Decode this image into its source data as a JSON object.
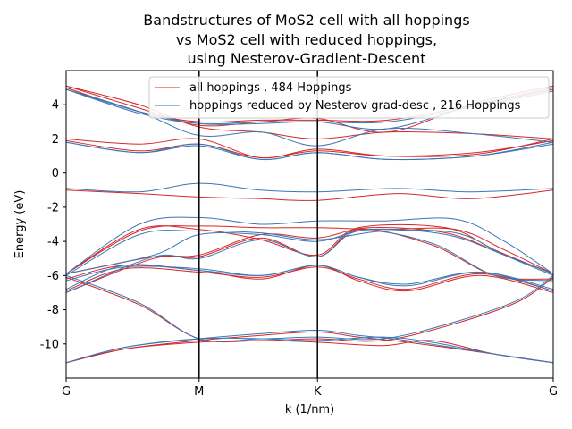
{
  "chart_data": {
    "type": "line",
    "title_lines": [
      "Bandstructures of MoS2 cell with all hoppings",
      "vs MoS2 cell with reduced hoppings,",
      "using Nesterov-Gradient-Descent"
    ],
    "xlabel": "k (1/nm)",
    "ylabel": "Energy (eV)",
    "ylim": [
      -12.0,
      6.0
    ],
    "yticks": [
      -10,
      -8,
      -6,
      -4,
      -2,
      0,
      2,
      4
    ],
    "x_ticks": [
      {
        "label": "G",
        "pos": 0.0
      },
      {
        "label": "M",
        "pos": 0.273
      },
      {
        "label": "K",
        "pos": 0.516
      },
      {
        "label": "G",
        "pos": 1.0
      }
    ],
    "vlines_at": [
      0.273,
      0.516
    ],
    "legend": {
      "placement": "top-right"
    },
    "series": [
      {
        "name": "all hoppings , 484 Hoppings",
        "color": "#d62728",
        "bands": [
          [
            [
              0,
              -11.1
            ],
            [
              0.12,
              -10.3
            ],
            [
              0.273,
              -9.9
            ],
            [
              0.4,
              -9.8
            ],
            [
              0.516,
              -9.9
            ],
            [
              0.65,
              -10.1
            ],
            [
              0.75,
              -9.8
            ],
            [
              0.88,
              -10.6
            ],
            [
              1,
              -11.1
            ]
          ],
          [
            [
              0,
              -11.1
            ],
            [
              0.12,
              -10.3
            ],
            [
              0.273,
              -9.8
            ],
            [
              0.4,
              -9.5
            ],
            [
              0.516,
              -9.3
            ],
            [
              0.6,
              -9.6
            ],
            [
              0.7,
              -9.9
            ],
            [
              0.88,
              -10.6
            ],
            [
              1,
              -11.1
            ]
          ],
          [
            [
              0,
              -6.1
            ],
            [
              0.15,
              -7.7
            ],
            [
              0.273,
              -9.7
            ],
            [
              0.4,
              -9.8
            ],
            [
              0.516,
              -9.7
            ],
            [
              0.65,
              -9.8
            ],
            [
              0.8,
              -8.8
            ],
            [
              0.93,
              -7.5
            ],
            [
              1,
              -6.1
            ]
          ],
          [
            [
              0,
              -6.2
            ],
            [
              0.12,
              -5.4
            ],
            [
              0.273,
              -5.7
            ],
            [
              0.4,
              -6.2
            ],
            [
              0.516,
              -5.4
            ],
            [
              0.6,
              -6.3
            ],
            [
              0.7,
              -6.9
            ],
            [
              0.85,
              -6.0
            ],
            [
              1,
              -7.0
            ]
          ],
          [
            [
              0,
              -6.9
            ],
            [
              0.12,
              -5.6
            ],
            [
              0.273,
              -5.8
            ],
            [
              0.4,
              -6.1
            ],
            [
              0.516,
              -5.5
            ],
            [
              0.6,
              -6.2
            ],
            [
              0.7,
              -6.8
            ],
            [
              0.85,
              -5.9
            ],
            [
              1,
              -6.9
            ]
          ],
          [
            [
              0,
              -7.0
            ],
            [
              0.18,
              -5.0
            ],
            [
              0.273,
              -4.9
            ],
            [
              0.4,
              -3.8
            ],
            [
              0.516,
              -4.9
            ],
            [
              0.6,
              -3.3
            ],
            [
              0.75,
              -4.2
            ],
            [
              0.88,
              -6.0
            ],
            [
              1,
              -6.2
            ]
          ],
          [
            [
              0,
              -5.9
            ],
            [
              0.15,
              -3.3
            ],
            [
              0.273,
              -3.3
            ],
            [
              0.4,
              -3.9
            ],
            [
              0.516,
              -4.8
            ],
            [
              0.6,
              -3.2
            ],
            [
              0.78,
              -3.2
            ],
            [
              0.88,
              -4.5
            ],
            [
              1,
              -5.9
            ]
          ],
          [
            [
              0,
              -5.9
            ],
            [
              0.18,
              -4.9
            ],
            [
              0.273,
              -4.8
            ],
            [
              0.4,
              -3.6
            ],
            [
              0.516,
              -3.8
            ],
            [
              0.62,
              -3.2
            ],
            [
              0.78,
              -3.5
            ],
            [
              0.9,
              -4.8
            ],
            [
              1,
              -5.9
            ]
          ],
          [
            [
              0,
              -5.9
            ],
            [
              0.15,
              -3.4
            ],
            [
              0.273,
              -3.1
            ],
            [
              0.4,
              -3.2
            ],
            [
              0.516,
              -3.2
            ],
            [
              0.65,
              -3.3
            ],
            [
              0.8,
              -3.3
            ],
            [
              0.9,
              -4.5
            ],
            [
              1,
              -5.9
            ]
          ],
          [
            [
              0,
              -1.0
            ],
            [
              0.15,
              -1.2
            ],
            [
              0.273,
              -1.4
            ],
            [
              0.4,
              -1.5
            ],
            [
              0.516,
              -1.6
            ],
            [
              0.68,
              -1.2
            ],
            [
              0.83,
              -1.5
            ],
            [
              1,
              -1.0
            ]
          ],
          [
            [
              0,
              1.9
            ],
            [
              0.15,
              1.3
            ],
            [
              0.273,
              1.7
            ],
            [
              0.4,
              0.9
            ],
            [
              0.516,
              1.3
            ],
            [
              0.66,
              1.0
            ],
            [
              0.84,
              1.2
            ],
            [
              1,
              1.9
            ]
          ],
          [
            [
              0,
              2.0
            ],
            [
              0.15,
              1.7
            ],
            [
              0.273,
              2.0
            ],
            [
              0.4,
              0.9
            ],
            [
              0.516,
              1.4
            ],
            [
              0.66,
              1.0
            ],
            [
              0.84,
              1.1
            ],
            [
              1,
              2.0
            ]
          ],
          [
            [
              0,
              5.1
            ],
            [
              0.15,
              4.0
            ],
            [
              0.273,
              2.7
            ],
            [
              0.4,
              2.4
            ],
            [
              0.516,
              2.0
            ],
            [
              0.66,
              2.4
            ],
            [
              0.84,
              2.3
            ],
            [
              1,
              2.0
            ]
          ],
          [
            [
              0,
              5.1
            ],
            [
              0.15,
              3.8
            ],
            [
              0.273,
              2.8
            ],
            [
              0.4,
              3.0
            ],
            [
              0.516,
              3.2
            ],
            [
              0.66,
              2.4
            ],
            [
              0.84,
              4.1
            ],
            [
              1,
              5.1
            ]
          ],
          [
            [
              0,
              5.0
            ],
            [
              0.15,
              3.6
            ],
            [
              0.273,
              3.0
            ],
            [
              0.4,
              3.1
            ],
            [
              0.516,
              3.1
            ],
            [
              0.66,
              3.1
            ],
            [
              0.84,
              4.0
            ],
            [
              1,
              4.9
            ]
          ]
        ]
      },
      {
        "name": "hoppings reduced by Nesterov grad-desc , 216 Hoppings",
        "color": "#3a77b4",
        "bands": [
          [
            [
              0,
              -11.1
            ],
            [
              0.12,
              -10.2
            ],
            [
              0.273,
              -9.7
            ],
            [
              0.4,
              -9.7
            ],
            [
              0.516,
              -9.8
            ],
            [
              0.65,
              -9.6
            ],
            [
              0.75,
              -9.9
            ],
            [
              0.88,
              -10.6
            ],
            [
              1,
              -11.1
            ]
          ],
          [
            [
              0,
              -11.1
            ],
            [
              0.12,
              -10.2
            ],
            [
              0.273,
              -9.7
            ],
            [
              0.4,
              -9.4
            ],
            [
              0.516,
              -9.2
            ],
            [
              0.6,
              -9.5
            ],
            [
              0.7,
              -9.8
            ],
            [
              0.88,
              -10.6
            ],
            [
              1,
              -11.1
            ]
          ],
          [
            [
              0,
              -6.0
            ],
            [
              0.15,
              -7.6
            ],
            [
              0.273,
              -9.7
            ],
            [
              0.4,
              -9.7
            ],
            [
              0.516,
              -9.6
            ],
            [
              0.65,
              -9.7
            ],
            [
              0.8,
              -8.7
            ],
            [
              0.93,
              -7.4
            ],
            [
              1,
              -6.0
            ]
          ],
          [
            [
              0,
              -6.3
            ],
            [
              0.12,
              -5.5
            ],
            [
              0.273,
              -5.6
            ],
            [
              0.4,
              -6.0
            ],
            [
              0.516,
              -5.4
            ],
            [
              0.6,
              -6.1
            ],
            [
              0.7,
              -6.5
            ],
            [
              0.85,
              -5.8
            ],
            [
              1,
              -6.9
            ]
          ],
          [
            [
              0,
              -6.8
            ],
            [
              0.12,
              -5.4
            ],
            [
              0.273,
              -5.7
            ],
            [
              0.4,
              -6.0
            ],
            [
              0.516,
              -5.4
            ],
            [
              0.6,
              -6.1
            ],
            [
              0.7,
              -6.6
            ],
            [
              0.85,
              -5.8
            ],
            [
              1,
              -6.8
            ]
          ],
          [
            [
              0,
              -7.0
            ],
            [
              0.18,
              -4.9
            ],
            [
              0.273,
              -5.0
            ],
            [
              0.4,
              -3.9
            ],
            [
              0.516,
              -4.9
            ],
            [
              0.6,
              -3.4
            ],
            [
              0.75,
              -4.1
            ],
            [
              0.88,
              -6.0
            ],
            [
              1,
              -6.3
            ]
          ],
          [
            [
              0,
              -5.9
            ],
            [
              0.15,
              -3.0
            ],
            [
              0.273,
              -2.6
            ],
            [
              0.4,
              -3.0
            ],
            [
              0.516,
              -2.8
            ],
            [
              0.65,
              -2.8
            ],
            [
              0.8,
              -2.7
            ],
            [
              0.9,
              -4.0
            ],
            [
              1,
              -5.9
            ]
          ],
          [
            [
              0,
              -5.9
            ],
            [
              0.18,
              -4.8
            ],
            [
              0.273,
              -3.6
            ],
            [
              0.4,
              -3.6
            ],
            [
              0.516,
              -4.0
            ],
            [
              0.62,
              -3.3
            ],
            [
              0.78,
              -3.6
            ],
            [
              0.9,
              -4.8
            ],
            [
              1,
              -5.9
            ]
          ],
          [
            [
              0,
              -6.0
            ],
            [
              0.15,
              -3.6
            ],
            [
              0.273,
              -3.4
            ],
            [
              0.4,
              -3.5
            ],
            [
              0.516,
              -3.9
            ],
            [
              0.65,
              -3.4
            ],
            [
              0.8,
              -3.5
            ],
            [
              0.9,
              -4.8
            ],
            [
              1,
              -6.0
            ]
          ],
          [
            [
              0,
              -0.9
            ],
            [
              0.15,
              -1.1
            ],
            [
              0.273,
              -0.6
            ],
            [
              0.4,
              -1.0
            ],
            [
              0.516,
              -1.1
            ],
            [
              0.68,
              -0.9
            ],
            [
              0.83,
              -1.1
            ],
            [
              1,
              -0.9
            ]
          ],
          [
            [
              0,
              1.8
            ],
            [
              0.15,
              1.2
            ],
            [
              0.273,
              1.6
            ],
            [
              0.4,
              0.8
            ],
            [
              0.516,
              1.2
            ],
            [
              0.66,
              0.8
            ],
            [
              0.84,
              1.0
            ],
            [
              1,
              1.8
            ]
          ],
          [
            [
              0,
              1.8
            ],
            [
              0.15,
              1.2
            ],
            [
              0.273,
              1.7
            ],
            [
              0.4,
              0.8
            ],
            [
              0.516,
              1.2
            ],
            [
              0.66,
              0.8
            ],
            [
              0.84,
              1.0
            ],
            [
              1,
              1.7
            ]
          ],
          [
            [
              0,
              4.9
            ],
            [
              0.15,
              3.6
            ],
            [
              0.273,
              2.2
            ],
            [
              0.4,
              2.4
            ],
            [
              0.516,
              1.6
            ],
            [
              0.66,
              2.6
            ],
            [
              0.84,
              2.3
            ],
            [
              1,
              1.8
            ]
          ],
          [
            [
              0,
              4.9
            ],
            [
              0.15,
              3.6
            ],
            [
              0.273,
              2.9
            ],
            [
              0.4,
              2.9
            ],
            [
              0.516,
              3.0
            ],
            [
              0.66,
              2.6
            ],
            [
              0.84,
              4.0
            ],
            [
              1,
              5.0
            ]
          ],
          [
            [
              0,
              4.9
            ],
            [
              0.15,
              3.5
            ],
            [
              0.273,
              2.9
            ],
            [
              0.4,
              3.0
            ],
            [
              0.516,
              3.0
            ],
            [
              0.66,
              3.0
            ],
            [
              0.84,
              3.9
            ],
            [
              1,
              4.8
            ]
          ]
        ]
      }
    ]
  }
}
